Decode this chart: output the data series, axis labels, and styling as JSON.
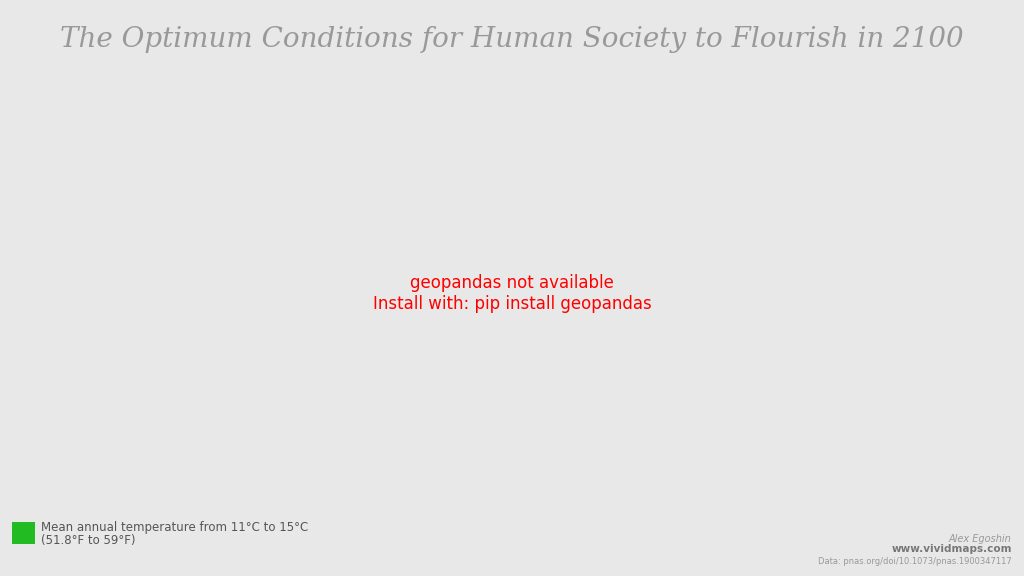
{
  "title": "The Optimum Conditions for Human Society to Flourish in 2100",
  "title_fontsize": 20,
  "title_color": "#999999",
  "background_color": "#e8e8e8",
  "ocean_color": "#e8e8e8",
  "land_color": "#f0f0f0",
  "border_color": "#cccccc",
  "highlight_color": "#22bb22",
  "legend_label_line1": "Mean annual temperature from 11°C to 15°C",
  "legend_label_line2": "(51.8°F to 59°F)",
  "credit_line1": "Alex Egoshin",
  "credit_line2": "www.vividmaps.com",
  "credit_line3": "Data: pnas.org/doi/10.1073/pnas.1900347117",
  "figsize": [
    10.24,
    5.76
  ],
  "dpi": 100,
  "extent": [
    -180,
    180,
    -60,
    85
  ]
}
